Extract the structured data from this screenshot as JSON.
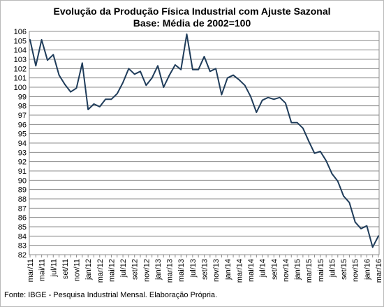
{
  "chart_data": {
    "type": "line",
    "title": "Evolução da Produção Física Industrial com Ajuste Sazonal",
    "subtitle": "Base: Média de 2002=100",
    "ylim": [
      82,
      106
    ],
    "y_ticks": [
      "82",
      "83",
      "84",
      "85",
      "86",
      "87",
      "88",
      "89",
      "90",
      "91",
      "92",
      "93",
      "94",
      "95",
      "96",
      "97",
      "98",
      "99",
      "100",
      "101",
      "102",
      "103",
      "104",
      "105",
      "106"
    ],
    "x_tick_labels": [
      "mar/11",
      "mai/11",
      "jul/11",
      "set/11",
      "nov/11",
      "jan/12",
      "mar/12",
      "mai/12",
      "jul/12",
      "set/12",
      "nov/12",
      "jan/13",
      "mar/13",
      "mai/13",
      "jul/13",
      "set/13",
      "nov/13",
      "jan/14",
      "mar/14",
      "mai/14",
      "jul/14",
      "set/14",
      "nov/14",
      "jan/15",
      "mar/15",
      "mai/15",
      "jul/15",
      "set/15",
      "nov/15",
      "jan/16",
      "mar/16"
    ],
    "grid": true,
    "legend": "none",
    "line_color": "#1f3c5a",
    "series": [
      {
        "x": [
          "mar/11",
          "abr/11",
          "mai/11",
          "jun/11",
          "jul/11",
          "ago/11",
          "set/11",
          "out/11",
          "nov/11",
          "dez/11",
          "jan/12",
          "fev/12",
          "mar/12",
          "abr/12",
          "mai/12",
          "jun/12",
          "jul/12",
          "ago/12",
          "set/12",
          "out/12",
          "nov/12",
          "dez/12",
          "jan/13",
          "fev/13",
          "mar/13",
          "abr/13",
          "mai/13",
          "jun/13",
          "jul/13",
          "ago/13",
          "set/13",
          "out/13",
          "nov/13",
          "dez/13",
          "jan/14",
          "fev/14",
          "mar/14",
          "abr/14",
          "mai/14",
          "jun/14",
          "jul/14",
          "ago/14",
          "set/14",
          "out/14",
          "nov/14",
          "dez/14",
          "jan/15",
          "fev/15",
          "mar/15",
          "abr/15",
          "mai/15",
          "jun/15",
          "jul/15",
          "ago/15",
          "set/15",
          "out/15",
          "nov/15",
          "dez/15",
          "jan/16",
          "fev/16",
          "mar/16"
        ],
        "values": [
          105.1,
          102.3,
          105.1,
          102.9,
          103.5,
          101.3,
          100.3,
          99.5,
          99.9,
          102.6,
          97.6,
          98.2,
          97.9,
          98.7,
          98.7,
          99.3,
          100.5,
          102.0,
          101.4,
          101.7,
          100.2,
          101.0,
          102.3,
          100.0,
          101.3,
          102.4,
          101.9,
          105.7,
          101.9,
          101.9,
          103.3,
          101.7,
          102.0,
          99.2,
          101.0,
          101.3,
          100.8,
          100.2,
          99.0,
          97.3,
          98.6,
          98.9,
          98.7,
          98.9,
          98.3,
          96.2,
          96.2,
          95.6,
          94.2,
          92.9,
          93.1,
          92.1,
          90.7,
          89.9,
          88.3,
          87.6,
          85.5,
          84.8,
          85.1,
          82.8,
          84.0
        ]
      }
    ]
  },
  "source": "Fonte: IBGE - Pesquisa Industrial Mensal. Elaboração Própria."
}
